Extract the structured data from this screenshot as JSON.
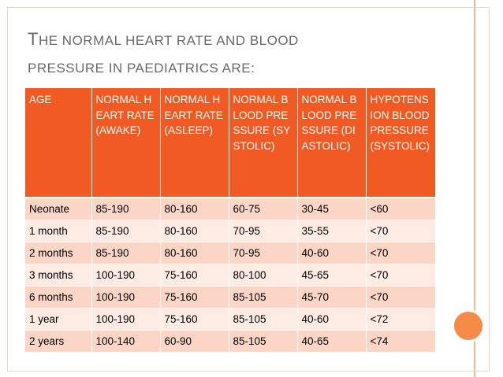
{
  "slide": {
    "title_line1_first": "T",
    "title_line1_rest": "HE NORMAL HEART RATE AND BLOOD",
    "title_line2": "PRESSURE IN PAEDIATRICS ARE:"
  },
  "table": {
    "headers": [
      "AGE",
      "NORMAL HEART RATE (AWAKE)",
      "NORMAL HEART RATE (ASLEEP)",
      "NORMAL BLOOD PRESSURE (SYSTOLIC)",
      "NORMAL BLOOD PRESSURE (DIASTOLIC)",
      "HYPOTENSION BLOOD PRESSURE (SYSTOLIC)"
    ],
    "rows": [
      [
        "Neonate",
        "85-190",
        "80-160",
        "60-75",
        "30-45",
        "<60"
      ],
      [
        "1 month",
        "85-190",
        "80-160",
        "70-95",
        "35-55",
        "<70"
      ],
      [
        "2 months",
        "85-190",
        "80-160",
        "70-95",
        "40-60",
        "<70"
      ],
      [
        "3 months",
        "100-190",
        "75-160",
        "80-100",
        "45-65",
        "<70"
      ],
      [
        "6 months",
        "100-190",
        "75-160",
        "85-105",
        "45-70",
        "<70"
      ],
      [
        "1 year",
        "100-190",
        "75-160",
        "85-105",
        "40-60",
        "<72"
      ],
      [
        "2 years",
        "100-140",
        "60-90",
        "85-105",
        "40-65",
        "<74"
      ]
    ]
  },
  "colors": {
    "header_bg": "#f15a22",
    "row_odd": "#fbd5c6",
    "row_even": "#fdebe4",
    "accent": "#f68b48"
  }
}
